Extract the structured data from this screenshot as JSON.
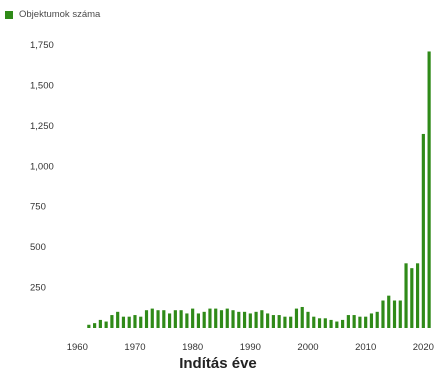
{
  "chart_data": {
    "type": "bar",
    "series": [
      {
        "name": "Objektumok száma",
        "color": "#2f8a18",
        "x": [
          1962,
          1963,
          1964,
          1965,
          1966,
          1967,
          1968,
          1969,
          1970,
          1971,
          1972,
          1973,
          1974,
          1975,
          1976,
          1977,
          1978,
          1979,
          1980,
          1981,
          1982,
          1983,
          1984,
          1985,
          1986,
          1987,
          1988,
          1989,
          1990,
          1991,
          1992,
          1993,
          1994,
          1995,
          1996,
          1997,
          1998,
          1999,
          2000,
          2001,
          2002,
          2003,
          2004,
          2005,
          2006,
          2007,
          2008,
          2009,
          2010,
          2011,
          2012,
          2013,
          2014,
          2015,
          2016,
          2017,
          2018,
          2019,
          2020,
          2021
        ],
        "values": [
          20,
          30,
          50,
          40,
          80,
          100,
          70,
          70,
          80,
          70,
          110,
          120,
          110,
          110,
          90,
          110,
          110,
          90,
          120,
          90,
          100,
          120,
          120,
          110,
          120,
          110,
          100,
          100,
          90,
          100,
          110,
          90,
          80,
          80,
          70,
          70,
          120,
          130,
          100,
          70,
          60,
          60,
          50,
          40,
          50,
          80,
          80,
          70,
          70,
          90,
          100,
          170,
          200,
          170,
          170,
          400,
          370,
          400,
          1200,
          1710
        ]
      }
    ],
    "xlabel": "Indítás éve",
    "ylabel": "",
    "yticks": [
      250,
      500,
      750,
      1000,
      1250,
      1500,
      1750
    ],
    "ytick_labels": [
      "250",
      "500",
      "750",
      "1,000",
      "1,250",
      "1,500",
      "1,750"
    ],
    "xticks": [
      1960,
      1970,
      1980,
      1990,
      2000,
      2010,
      2020
    ],
    "xtick_labels": [
      "1960",
      "1970",
      "1980",
      "1990",
      "2000",
      "2010",
      "2020"
    ],
    "ylim": [
      0,
      1750
    ],
    "xlim": [
      1957,
      2021.5
    ],
    "grid": false,
    "legend": "top-left"
  }
}
